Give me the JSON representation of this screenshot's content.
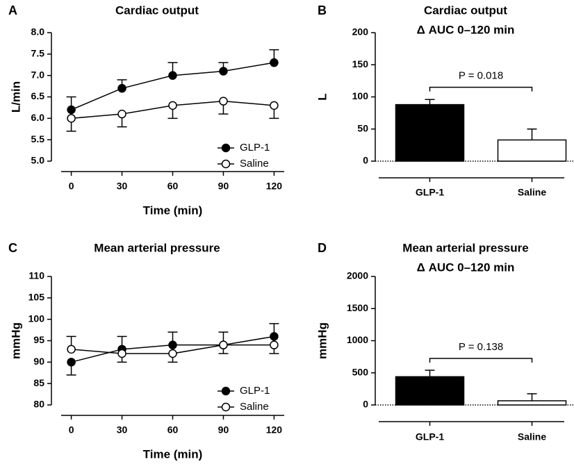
{
  "chart_data": [
    {
      "type": "line",
      "panel_label": "A",
      "title": "Cardiac output",
      "x_label": "Time (min)",
      "y_label": "L/min",
      "x": [
        0,
        30,
        60,
        90,
        120
      ],
      "xlim": [
        -6,
        126
      ],
      "xticks": [
        0,
        30,
        60,
        90,
        120
      ],
      "ylim": [
        5,
        8
      ],
      "yticks": [
        {
          "value": 5,
          "label": "5.0"
        },
        5.5,
        {
          "value": 6,
          "label": "6.0"
        },
        6.5,
        {
          "value": 7,
          "label": "7.0"
        },
        7.5,
        {
          "value": 8,
          "label": "8.0"
        }
      ],
      "legend": "lower right",
      "series": [
        {
          "name": "GLP-1",
          "color": "#000000",
          "values": [
            6.2,
            6.7,
            7.0,
            7.1,
            7.3
          ],
          "errors": [
            0.3,
            0.2,
            0.3,
            0.2,
            0.3
          ],
          "error_side": [
            "up",
            "up",
            "up",
            "up",
            "up"
          ]
        },
        {
          "name": "Saline",
          "color": "#ffffff",
          "values": [
            6.0,
            6.1,
            6.3,
            6.4,
            6.3
          ],
          "errors": [
            0.3,
            0.3,
            0.3,
            0.3,
            0.3
          ],
          "error_side": [
            "down",
            "down",
            "down",
            "down",
            "down"
          ]
        }
      ]
    },
    {
      "type": "bar",
      "panel_label": "B",
      "title": "Cardiac output",
      "subtitle": "Δ AUC 0–120 min",
      "y_label": "L",
      "categories": [
        "GLP-1",
        "Saline"
      ],
      "values": [
        88,
        33
      ],
      "errors": [
        8,
        17
      ],
      "colors": [
        "#000000",
        "#ffffff"
      ],
      "ylim": [
        0,
        200
      ],
      "yticks": [
        0,
        50,
        100,
        150,
        200
      ],
      "annotation": {
        "text": "P = 0.018",
        "y": 115
      }
    },
    {
      "type": "line",
      "panel_label": "C",
      "title": "Mean arterial pressure",
      "x_label": "Time (min)",
      "y_label": "mmHg",
      "x": [
        0,
        30,
        60,
        90,
        120
      ],
      "xlim": [
        -6,
        126
      ],
      "xticks": [
        0,
        30,
        60,
        90,
        120
      ],
      "ylim": [
        80,
        110
      ],
      "yticks": [
        80,
        85,
        90,
        95,
        100,
        105,
        110
      ],
      "legend": "lower right",
      "series": [
        {
          "name": "GLP-1",
          "color": "#000000",
          "values": [
            90,
            93,
            94,
            94,
            96
          ],
          "errors": [
            3,
            3,
            3,
            3,
            3
          ],
          "error_side": [
            "down",
            "up",
            "up",
            "up",
            "up"
          ]
        },
        {
          "name": "Saline",
          "color": "#ffffff",
          "values": [
            93,
            92,
            92,
            94,
            94
          ],
          "errors": [
            3,
            2,
            2,
            2,
            2
          ],
          "error_side": [
            "up",
            "down",
            "down",
            "down",
            "down"
          ]
        }
      ]
    },
    {
      "type": "bar",
      "panel_label": "D",
      "title": "Mean arterial pressure",
      "subtitle": "Δ AUC 0–120 min",
      "y_label": "mmHg",
      "categories": [
        "GLP-1",
        "Saline"
      ],
      "values": [
        440,
        65
      ],
      "errors": [
        100,
        110
      ],
      "colors": [
        "#000000",
        "#ffffff"
      ],
      "ylim": [
        0,
        2000
      ],
      "yticks": [
        0,
        500,
        1000,
        1500,
        2000
      ],
      "annotation": {
        "text": "P = 0.138",
        "y": 724
      }
    }
  ]
}
